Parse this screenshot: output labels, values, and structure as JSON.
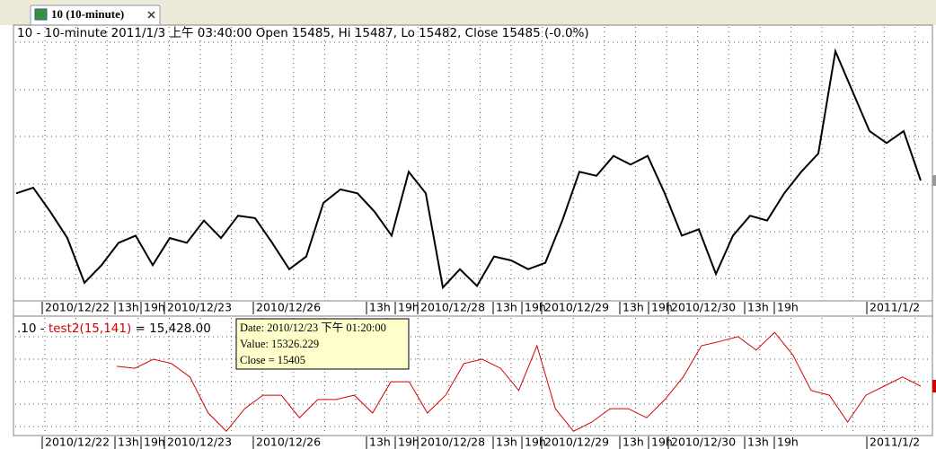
{
  "tab": {
    "title": "10 (10-minute)"
  },
  "chart_data": [
    {
      "type": "line",
      "title": "10 - 10-minute 2011/1/3 上午 03:40:00 Open 15485, Hi 15487, Lo 15482, Close 15485 (-0.0%)",
      "xtick_labels": [
        "2010/12/22",
        "13h",
        "19h",
        "2010/12/23",
        "2010/12/26",
        "13h",
        "19h",
        "2010/12/28",
        "13h",
        "19h",
        "2010/12/29",
        "13h",
        "19h",
        "2010/12/30",
        "13h",
        "19h",
        "2011/1/2"
      ],
      "color": "#000000",
      "values": [
        15469,
        15476,
        15446,
        15413,
        15357,
        15379,
        15407,
        15416,
        15379,
        15413,
        15407,
        15435,
        15413,
        15441,
        15438,
        15407,
        15374,
        15390,
        15457,
        15474,
        15469,
        15446,
        15416,
        15496,
        15469,
        15351,
        15374,
        15353,
        15390,
        15385,
        15374,
        15382,
        15435,
        15496,
        15491,
        15516,
        15505,
        15516,
        15469,
        15416,
        15424,
        15368,
        15416,
        15441,
        15435,
        15469,
        15496,
        15519,
        15647,
        15597,
        15547,
        15532,
        15547,
        15485
      ],
      "ylim": [
        15340,
        15664
      ],
      "grid": true
    },
    {
      "type": "line",
      "title_parts": [
        ".10 - ",
        "test2(15,141)",
        " = 15,428.00"
      ],
      "tooltip": [
        "Date: 2010/12/23 下午 01:20:00",
        "Value: 15326.229",
        "Close = 15405"
      ],
      "xtick_labels": [
        "2010/12/22",
        "13h",
        "19h",
        "2010/12/23",
        "2010/12/26",
        "13h",
        "19h",
        "2010/12/28",
        "13h",
        "19h",
        "2010/12/29",
        "13h",
        "19h",
        "2010/12/30",
        "13h",
        "19h",
        "2011/1/2"
      ],
      "color": "#d40000",
      "values": [
        15478,
        15473,
        15496,
        15485,
        15451,
        15360,
        15314,
        15371,
        15405,
        15405,
        15348,
        15394,
        15394,
        15405,
        15360,
        15439,
        15439,
        15360,
        15405,
        15485,
        15496,
        15473,
        15417,
        15530,
        15371,
        15314,
        15337,
        15371,
        15371,
        15348,
        15394,
        15451,
        15530,
        15541,
        15553,
        15519,
        15564,
        15507,
        15417,
        15405,
        15337,
        15405,
        15428,
        15451,
        15428
      ],
      "ylim": [
        15303,
        15605
      ],
      "grid": true
    }
  ]
}
